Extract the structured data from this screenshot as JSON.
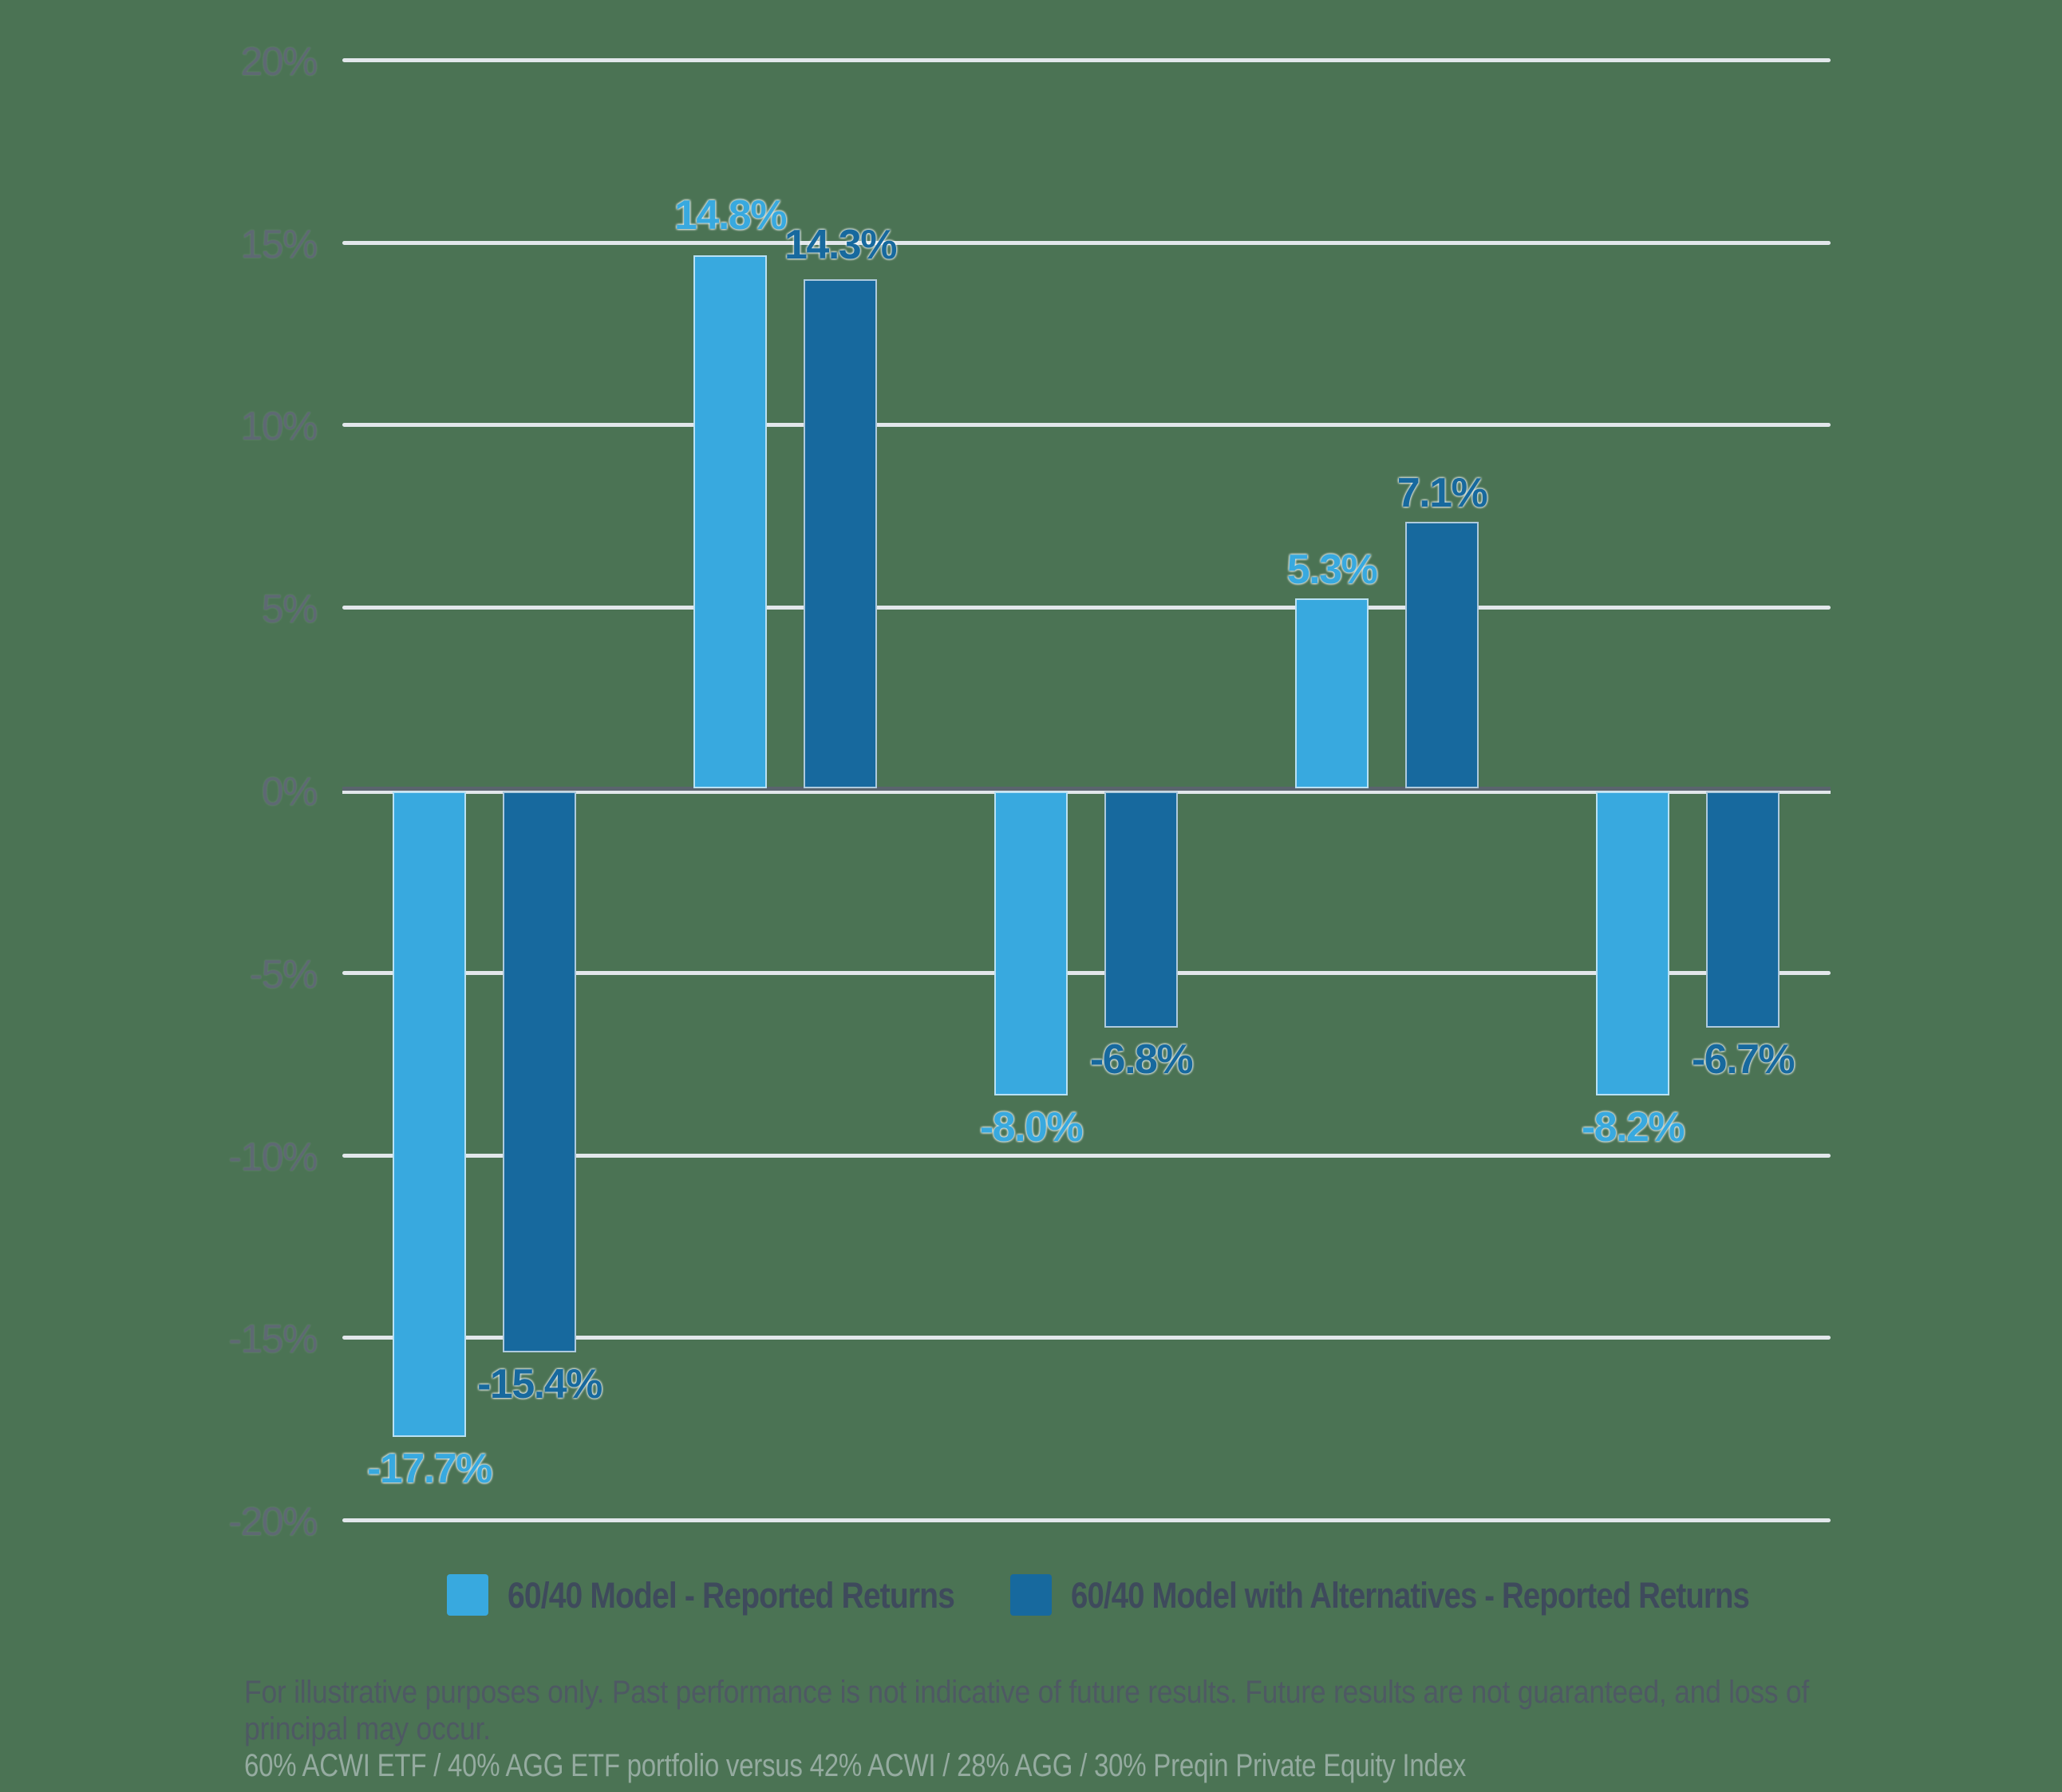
{
  "chart_data": {
    "type": "bar",
    "title": "",
    "xlabel": "",
    "ylabel": "",
    "ylim": [
      -20,
      20
    ],
    "ytick_step": 5,
    "yticks": [
      "20%",
      "15%",
      "10%",
      "5%",
      "0%",
      "-5%",
      "-10%",
      "-15%",
      "-20%"
    ],
    "grid": true,
    "legend_position": "bottom",
    "series": [
      {
        "name": "60/40 Model - Reported Returns",
        "color": "#38A9DF",
        "values": [
          -17.7,
          14.8,
          -8.0,
          5.3,
          -8.2
        ],
        "labels": [
          "-17.7%",
          "14.8%",
          "-8.0%",
          "5.3%",
          "-8.2%"
        ]
      },
      {
        "name": "60/40 Model with Alternatives - Reported Returns",
        "color": "#17699E",
        "values": [
          -15.4,
          14.3,
          -6.8,
          7.1,
          -6.7
        ],
        "labels": [
          "-15.4%",
          "14.3%",
          "-6.8%",
          "7.1%",
          "-6.7%"
        ]
      }
    ]
  },
  "legend": {
    "items": [
      {
        "label": "60/40 Model - Reported Returns",
        "color": "#38A9DF"
      },
      {
        "label": "60/40 Model with Alternatives - Reported Returns",
        "color": "#17699E"
      }
    ]
  },
  "footnotes": {
    "line1": "For illustrative purposes only. Past performance is not indicative of future results. Future results are not guaranteed, and loss of",
    "line2": "principal may occur.",
    "line3": "60% ACWI ETF / 40% AGG ETF portfolio versus 42% ACWI / 28% AGG / 30% Preqin Private Equity Index"
  },
  "colors": {
    "background": "#4B7354",
    "gridline": "#E2E7EB",
    "zeroline": "#5A646E",
    "axis_label": "#5E6973",
    "legend_text": "#3E4A5C",
    "footnote_text": "#4E5963",
    "footnote_light_text": "#95ABA0"
  }
}
